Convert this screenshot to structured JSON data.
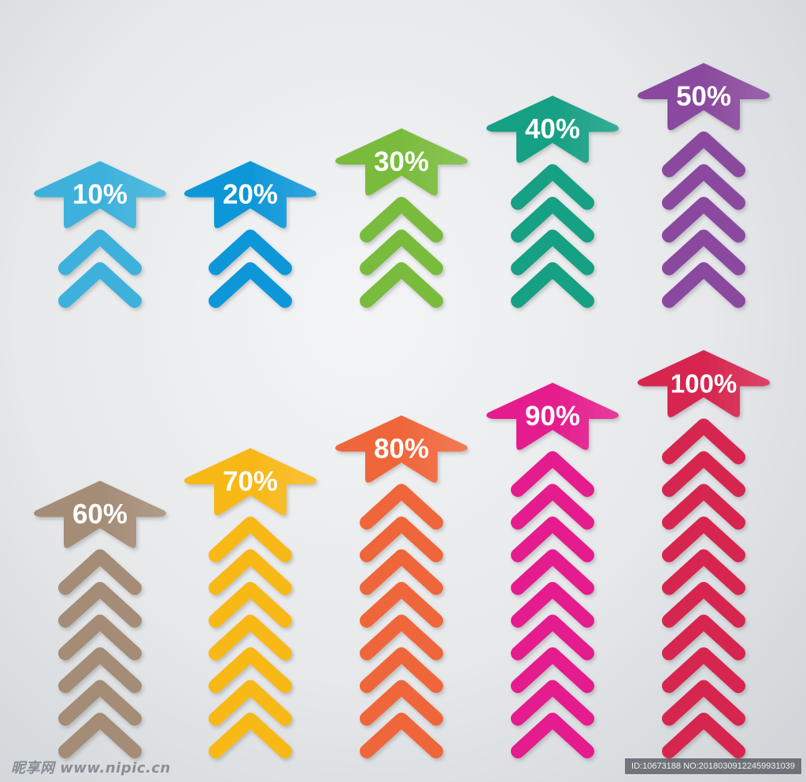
{
  "arrows": [
    {
      "label": "10%",
      "value": 10,
      "color": "#3cb1dc",
      "chevrons": 2
    },
    {
      "label": "20%",
      "value": 20,
      "color": "#0f97d9",
      "chevrons": 2
    },
    {
      "label": "30%",
      "value": 30,
      "color": "#79bc3c",
      "chevrons": 3
    },
    {
      "label": "40%",
      "value": 40,
      "color": "#16a084",
      "chevrons": 4
    },
    {
      "label": "50%",
      "value": 50,
      "color": "#8a4a9e",
      "chevrons": 5
    },
    {
      "label": "60%",
      "value": 60,
      "color": "#a48c76",
      "chevrons": 6
    },
    {
      "label": "70%",
      "value": 70,
      "color": "#f8b817",
      "chevrons": 7
    },
    {
      "label": "80%",
      "value": 80,
      "color": "#f0663a",
      "chevrons": 8
    },
    {
      "label": "90%",
      "value": 90,
      "color": "#e51c8d",
      "chevrons": 9
    },
    {
      "label": "100%",
      "value": 100,
      "color": "#d6264f",
      "chevrons": 10
    }
  ],
  "watermark": {
    "left_text": "昵享网 www.nipic.cn",
    "right_text": "ID:10673188 NO:20180309122459931039"
  }
}
